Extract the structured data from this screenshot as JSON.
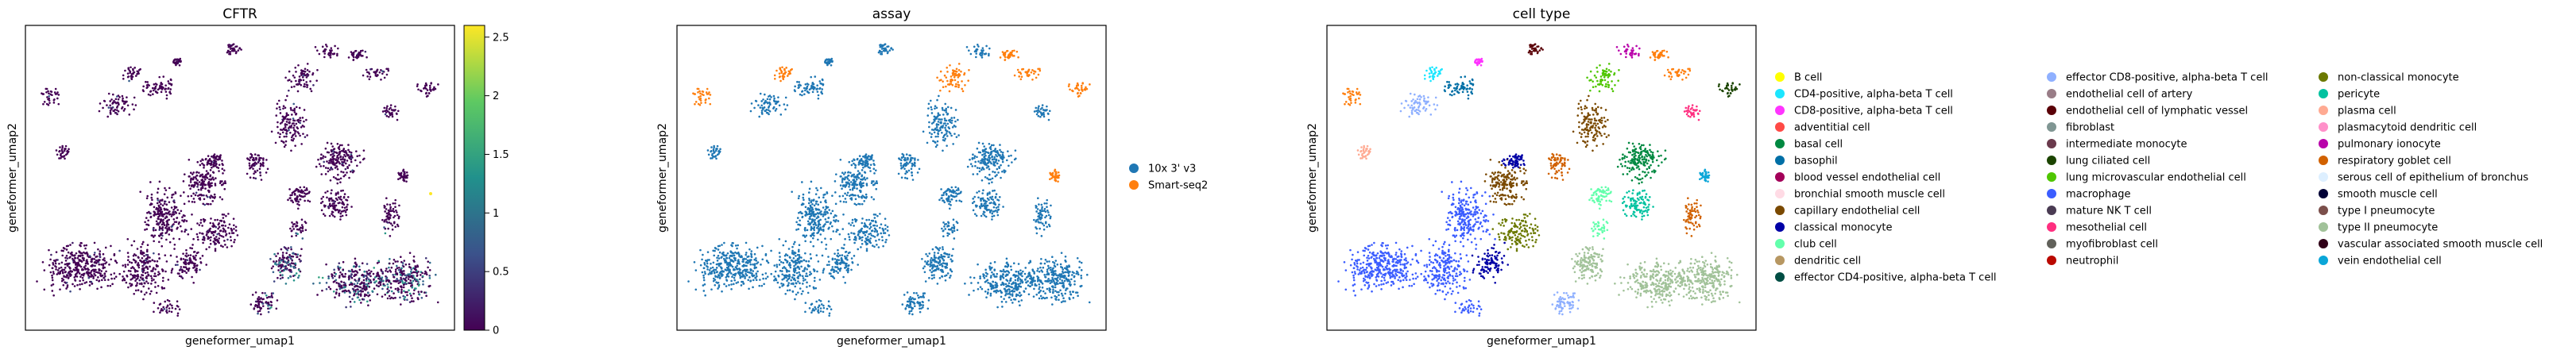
{
  "chart_data": [
    {
      "type": "scatter",
      "title": "CFTR",
      "xlabel": "geneformer_umap1",
      "ylabel": "geneformer_umap2",
      "colorbar": {
        "colormap": "viridis",
        "range": [
          0,
          2.6
        ],
        "ticks": [
          0,
          0.5,
          1,
          1.5,
          2,
          2.5
        ],
        "tick_labels": [
          "0",
          "0.5",
          "1",
          "1.5",
          "2",
          "2.5"
        ]
      }
    },
    {
      "type": "scatter",
      "title": "assay",
      "xlabel": "geneformer_umap1",
      "ylabel": "geneformer_umap2",
      "legend_position": "right",
      "legend": [
        {
          "label": "10x 3' v3",
          "color": "#1f77b4"
        },
        {
          "label": "Smart-seq2",
          "color": "#ff7f0e"
        }
      ]
    },
    {
      "type": "scatter",
      "title": "cell type",
      "xlabel": "geneformer_umap1",
      "ylabel": "geneformer_umap2",
      "legend_position": "right",
      "legend_columns": [
        [
          {
            "label": "B cell",
            "color": "#ffff00"
          },
          {
            "label": "CD4-positive, alpha-beta T cell",
            "color": "#1ce6ff"
          },
          {
            "label": "CD8-positive, alpha-beta T cell",
            "color": "#ff34ff"
          },
          {
            "label": "adventitial cell",
            "color": "#ff4a46"
          },
          {
            "label": "basal cell",
            "color": "#008941"
          },
          {
            "label": "basophil",
            "color": "#006fa6"
          },
          {
            "label": "blood vessel endothelial cell",
            "color": "#a30059"
          },
          {
            "label": "bronchial smooth muscle cell",
            "color": "#ffdbe5"
          },
          {
            "label": "capillary endothelial cell",
            "color": "#7a4900"
          },
          {
            "label": "classical monocyte",
            "color": "#0000a6"
          },
          {
            "label": "club cell",
            "color": "#63ffac"
          },
          {
            "label": "dendritic cell",
            "color": "#b79762"
          },
          {
            "label": "effector CD4-positive, alpha-beta T cell",
            "color": "#004d43"
          }
        ],
        [
          {
            "label": "effector CD8-positive, alpha-beta T cell",
            "color": "#8fb0ff"
          },
          {
            "label": "endothelial cell of artery",
            "color": "#997d87"
          },
          {
            "label": "endothelial cell of lymphatic vessel",
            "color": "#5a0007"
          },
          {
            "label": "fibroblast",
            "color": "#809693"
          },
          {
            "label": "intermediate monocyte",
            "color": "#6a3a4c"
          },
          {
            "label": "lung ciliated cell",
            "color": "#1b4400"
          },
          {
            "label": "lung microvascular endothelial cell",
            "color": "#4fc601"
          },
          {
            "label": "macrophage",
            "color": "#3b5dff"
          },
          {
            "label": "mature NK T cell",
            "color": "#4a3b53"
          },
          {
            "label": "mesothelial cell",
            "color": "#ff2f80"
          },
          {
            "label": "myofibroblast cell",
            "color": "#61615a"
          },
          {
            "label": "neutrophil",
            "color": "#ba0900"
          }
        ],
        [
          {
            "label": "non-classical monocyte",
            "color": "#6b7900"
          },
          {
            "label": "pericyte",
            "color": "#00c2a0"
          },
          {
            "label": "plasma cell",
            "color": "#ffaa92"
          },
          {
            "label": "plasmacytoid dendritic cell",
            "color": "#ff90c9"
          },
          {
            "label": "pulmonary ionocyte",
            "color": "#b903aa"
          },
          {
            "label": "respiratory goblet cell",
            "color": "#d16100"
          },
          {
            "label": "serous cell of epithelium of bronchus",
            "color": "#ddefff"
          },
          {
            "label": "smooth muscle cell",
            "color": "#000035"
          },
          {
            "label": "type I pneumocyte",
            "color": "#7b4f4b"
          },
          {
            "label": "type II pneumocyte",
            "color": "#a1c299"
          },
          {
            "label": "vascular associated smooth muscle cell",
            "color": "#300018"
          },
          {
            "label": "vein endothelial cell",
            "color": "#0aa6d8"
          }
        ]
      ]
    }
  ]
}
